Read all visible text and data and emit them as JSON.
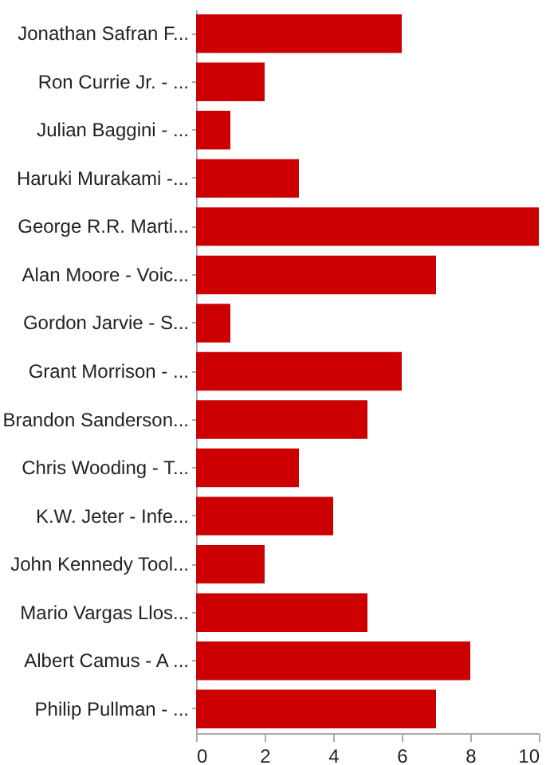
{
  "chart_data": {
    "type": "bar",
    "orientation": "horizontal",
    "color": "#cc0000",
    "grid": false,
    "xlim": [
      0,
      10
    ],
    "xticks": [
      0,
      2,
      4,
      6,
      8,
      10
    ],
    "categories": [
      "Jonathan Safran F...",
      "Ron Currie Jr. - ...",
      "Julian Baggini - ...",
      "Haruki Murakami -...",
      "George R.R. Marti...",
      "Alan Moore - Voic...",
      "Gordon Jarvie - S...",
      "Grant Morrison - ...",
      "Brandon Sanderson...",
      "Chris Wooding - T...",
      "K.W. Jeter - Infe...",
      "John Kennedy Tool...",
      "Mario Vargas Llos...",
      "Albert Camus - A ...",
      "Philip Pullman - ..."
    ],
    "values": [
      6,
      2,
      1,
      3,
      10,
      7,
      1,
      6,
      5,
      3,
      4,
      2,
      5,
      8,
      7
    ]
  }
}
